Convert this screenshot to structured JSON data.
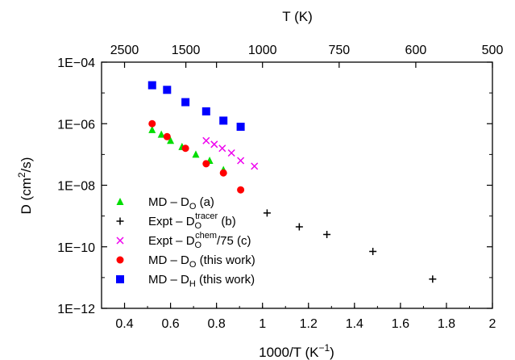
{
  "chart_data": {
    "type": "scatter",
    "xlabel_main": "1000/T (K",
    "xlabel_sup": "−1",
    "xlabel_close": ")",
    "top_axis_label": "T (K)",
    "ylabel_main": "D (cm",
    "ylabel_sup": "2",
    "ylabel_close": "/s)",
    "xlim": [
      0.3,
      2.0
    ],
    "ylim_log10": [
      -12,
      -4
    ],
    "y_scale": "log",
    "grid": false,
    "legend_position": "bottom-left",
    "x_ticks": [
      0.4,
      0.6,
      0.8,
      1.0,
      1.2,
      1.4,
      1.6,
      1.8,
      2.0
    ],
    "x_tick_labels": [
      "0.4",
      "0.6",
      "0.8",
      "1",
      "1.2",
      "1.4",
      "1.6",
      "1.8",
      "2"
    ],
    "y_ticks_log10": [
      -4,
      -6,
      -8,
      -10,
      -12
    ],
    "y_tick_labels": [
      "1E−04",
      "1E−06",
      "1E−08",
      "1E−10",
      "1E−12"
    ],
    "top_ticks_T": [
      2500,
      1500,
      1250,
      1000,
      750,
      600,
      500
    ],
    "top_tick_labels": [
      "2500",
      "1500",
      "",
      "1000",
      "750",
      "600",
      "500"
    ],
    "series": [
      {
        "label_parts": [
          "MD – D",
          "O",
          "",
          " (a)"
        ],
        "marker": "triangle",
        "color": "#00dd00",
        "x": [
          0.52,
          0.56,
          0.6,
          0.65,
          0.71,
          0.77,
          0.83
        ],
        "log10y": [
          -6.2,
          -6.35,
          -6.55,
          -6.75,
          -7.0,
          -7.2,
          -7.5
        ]
      },
      {
        "label_parts": [
          "Expt – D",
          "O",
          "tracer",
          " (b)"
        ],
        "marker": "plus",
        "color": "#000000",
        "x": [
          1.02,
          1.16,
          1.28,
          1.48,
          1.74
        ],
        "log10y": [
          -8.9,
          -9.35,
          -9.6,
          -10.15,
          -11.05
        ]
      },
      {
        "label_parts": [
          "Expt – D",
          "O",
          "chem",
          "/75 (c)"
        ],
        "marker": "cross",
        "color": "#ee00ee",
        "x": [
          0.755,
          0.79,
          0.825,
          0.865,
          0.905,
          0.965
        ],
        "log10y": [
          -6.55,
          -6.67,
          -6.8,
          -6.95,
          -7.2,
          -7.38
        ]
      },
      {
        "label_parts": [
          "MD – D",
          "O",
          "",
          " (this work)"
        ],
        "marker": "circle",
        "color": "#ff0000",
        "x": [
          0.52,
          0.585,
          0.665,
          0.755,
          0.83,
          0.905
        ],
        "log10y": [
          -6.0,
          -6.42,
          -6.8,
          -7.3,
          -7.6,
          -8.15
        ]
      },
      {
        "label_parts": [
          "MD – D",
          "H",
          "",
          " (this work)"
        ],
        "marker": "square",
        "color": "#0000ff",
        "x": [
          0.52,
          0.585,
          0.665,
          0.755,
          0.83,
          0.905
        ],
        "log10y": [
          -4.75,
          -4.9,
          -5.3,
          -5.6,
          -5.9,
          -6.1
        ]
      }
    ]
  }
}
